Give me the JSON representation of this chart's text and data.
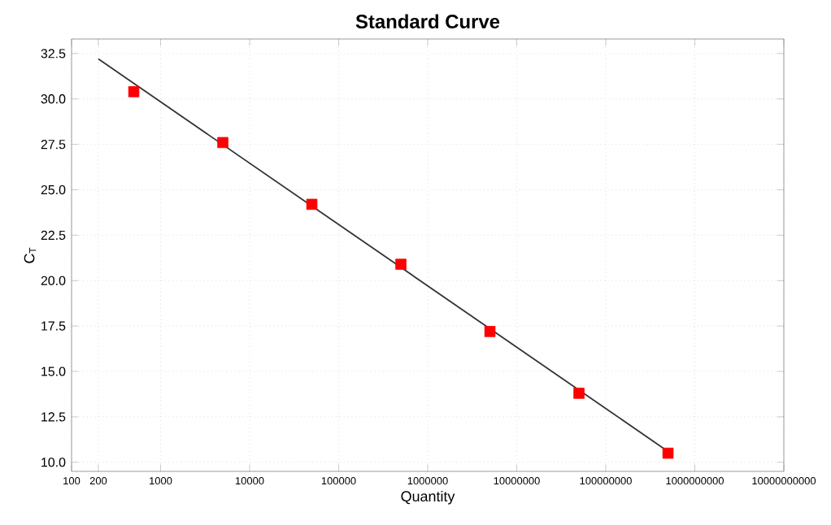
{
  "chart_data": {
    "type": "scatter",
    "title": "Standard Curve",
    "xlabel": "Quantity",
    "ylabel": "C$_{T}$",
    "log": "x",
    "grid": true,
    "marker": "square",
    "xlim": [
      100,
      10000000000
    ],
    "xticks": [
      100,
      200,
      1000,
      10000,
      100000,
      1000000,
      10000000,
      100000000,
      1000000000,
      10000000000
    ],
    "ylim": [
      9.5,
      33.3
    ],
    "yticks": [
      {
        "value": 10,
        "label": "10.0"
      },
      {
        "value": 12.5,
        "label": "12.5"
      },
      {
        "value": 15,
        "label": "15.0"
      },
      {
        "value": 17.5,
        "label": "17.5"
      },
      {
        "value": 20,
        "label": "20.0"
      },
      {
        "value": 22.5,
        "label": "22.5"
      },
      {
        "value": 25,
        "label": "25.0"
      },
      {
        "value": 27.5,
        "label": "27.5"
      },
      {
        "value": 30,
        "label": "30.0"
      },
      {
        "value": 32.5,
        "label": "32.5"
      }
    ],
    "series": [
      {
        "type": "line",
        "marker": "none",
        "color": "#333333",
        "x": [
          200,
          500000000
        ],
        "values": [
          32.2,
          10.6
        ]
      },
      {
        "color": "#ff0000",
        "x": [
          500,
          5000,
          50000,
          500000,
          5000000,
          50000000,
          500000000
        ],
        "values": [
          30.4,
          27.6,
          24.2,
          20.9,
          17.2,
          13.8,
          10.5
        ]
      }
    ]
  }
}
